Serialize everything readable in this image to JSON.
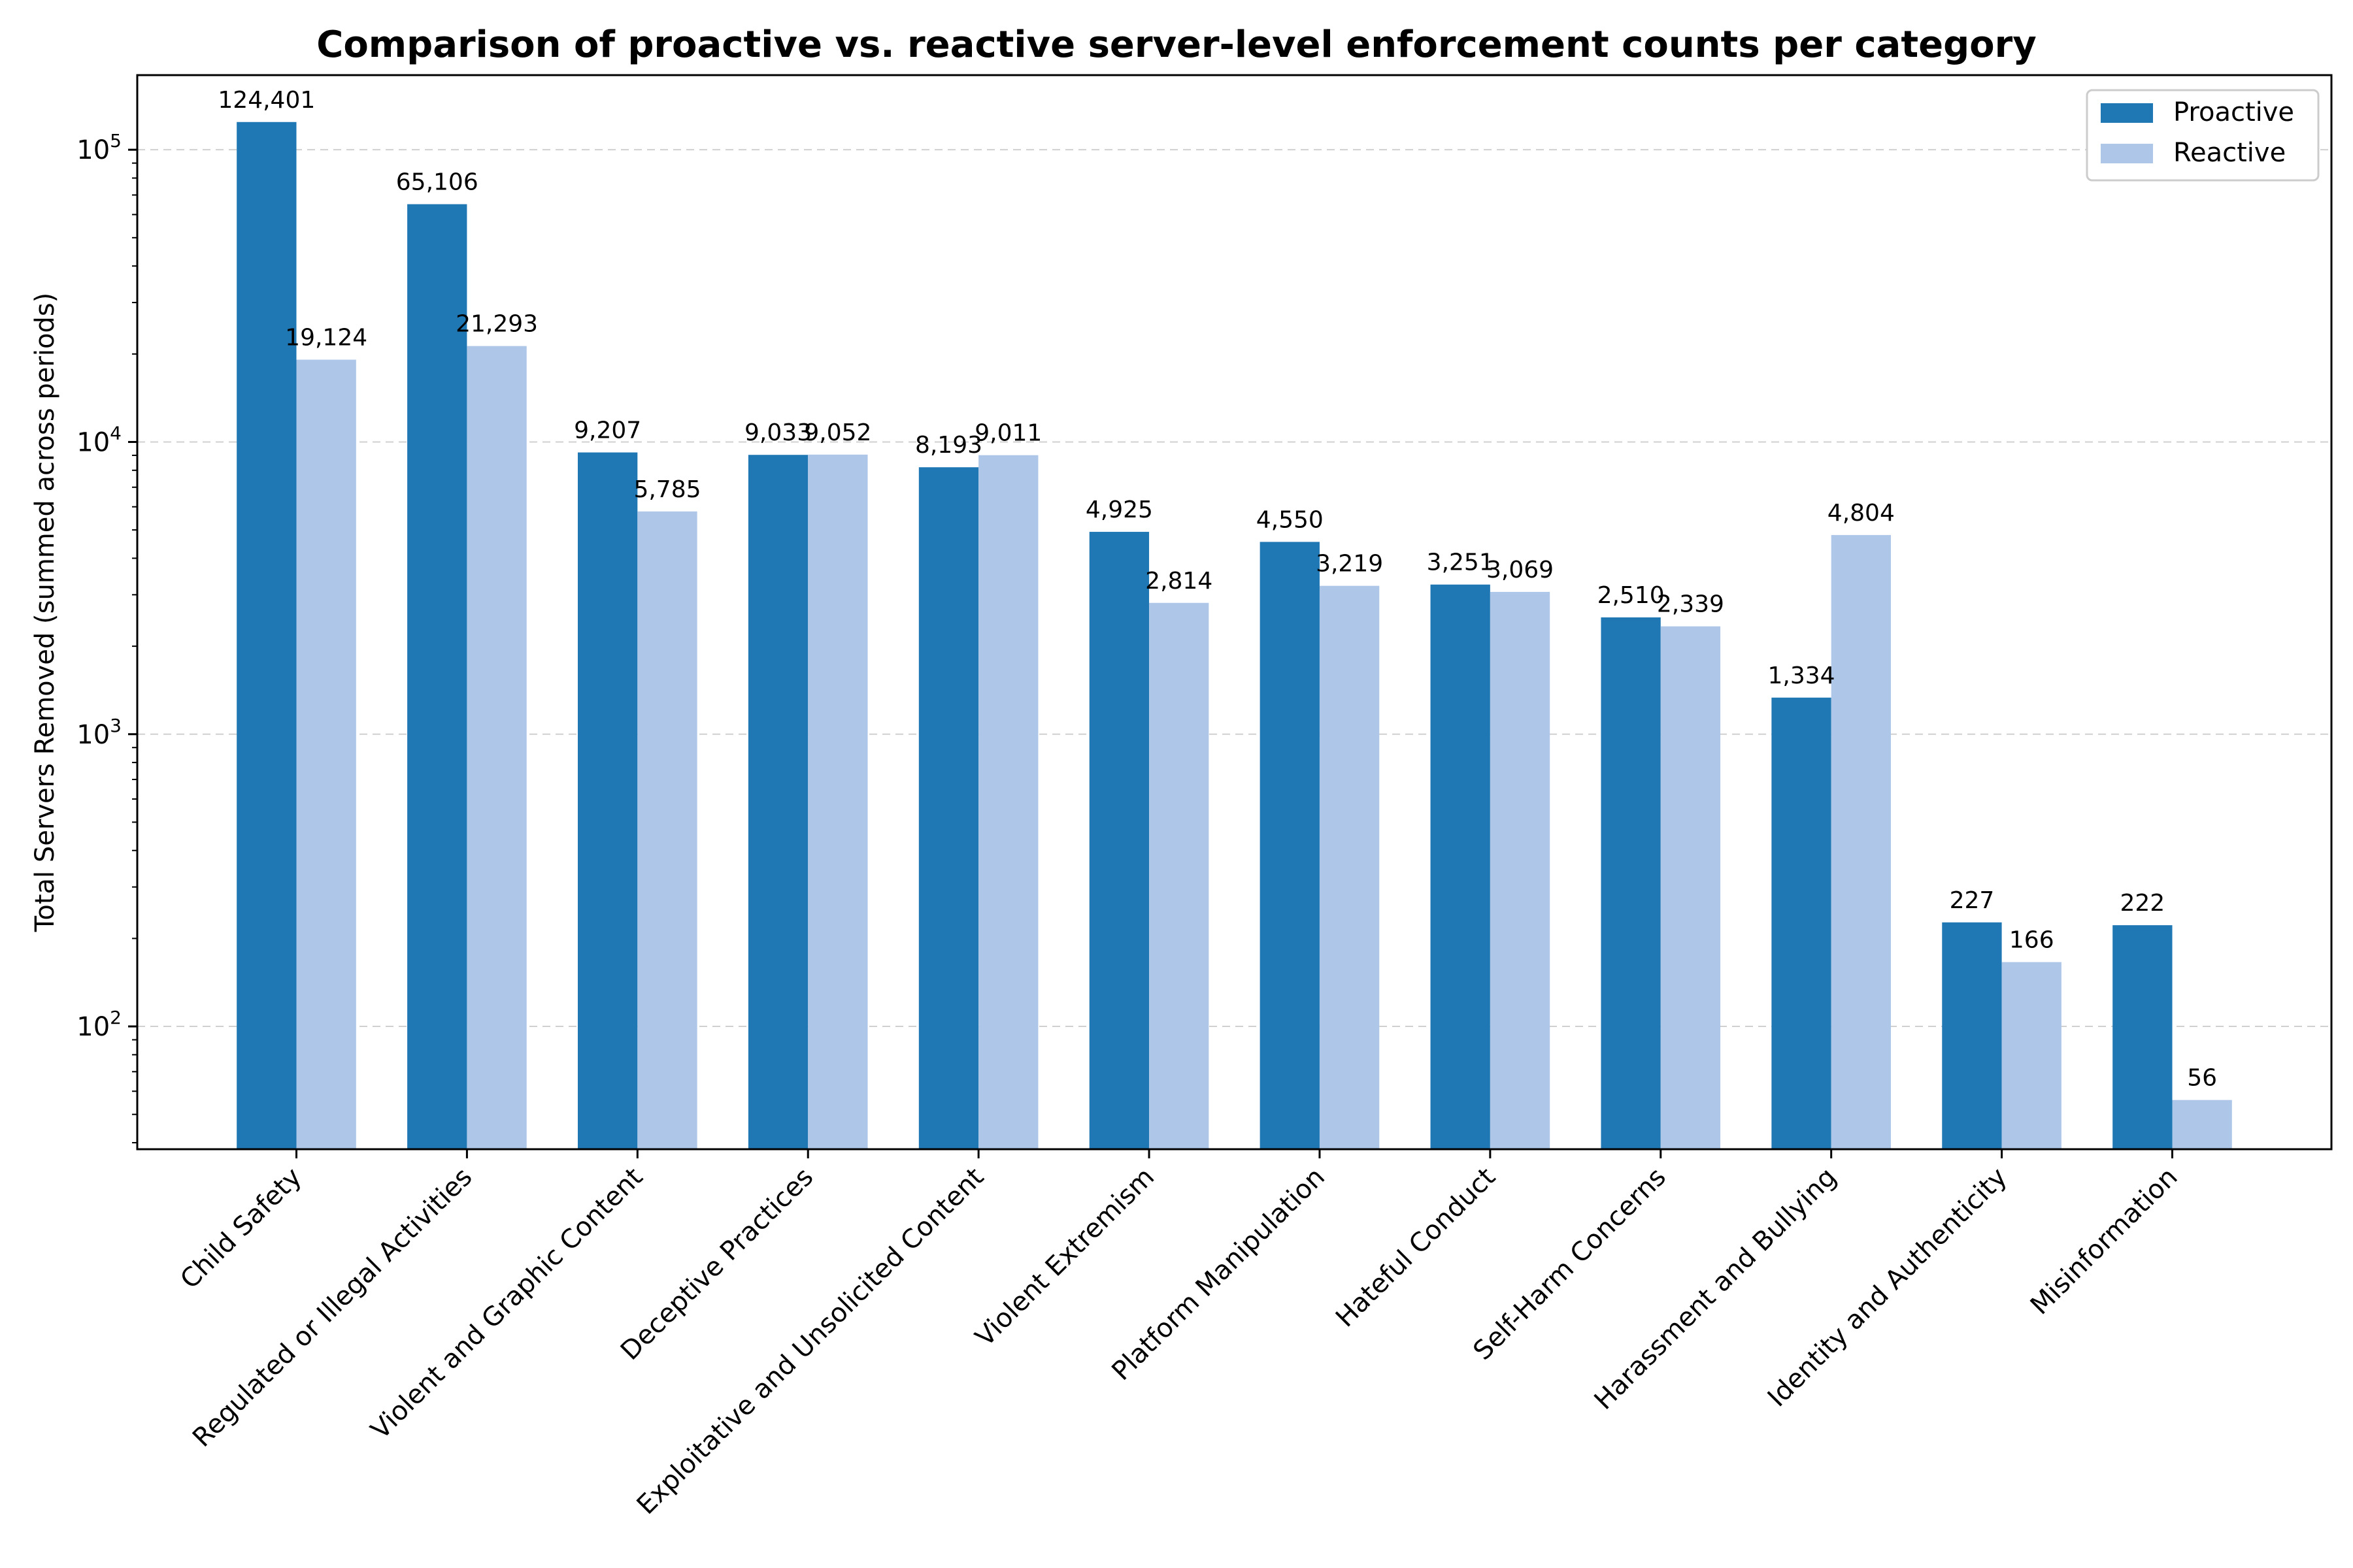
{
  "chart_data": {
    "type": "bar",
    "title": "Comparison of proactive vs. reactive server-level enforcement counts per category",
    "xlabel": "",
    "ylabel": "Total Servers Removed (summed across periods)",
    "yscale": "log",
    "ylim": [
      38,
      180000
    ],
    "yticks": [
      {
        "value": 100,
        "base": "10",
        "exp": "2"
      },
      {
        "value": 1000,
        "base": "10",
        "exp": "3"
      },
      {
        "value": 10000,
        "base": "10",
        "exp": "4"
      },
      {
        "value": 100000,
        "base": "10",
        "exp": "5"
      }
    ],
    "grid": "horizontal dashed",
    "legend_position": "top-right",
    "categories": [
      "Child Safety",
      "Regulated or Illegal Activities",
      "Violent and Graphic Content",
      "Deceptive Practices",
      "Exploitative and Unsolicited Content",
      "Violent Extremism",
      "Platform Manipulation",
      "Hateful Conduct",
      "Self-Harm Concerns",
      "Harassment and Bullying",
      "Identity and Authenticity",
      "Misinformation"
    ],
    "series": [
      {
        "name": "Proactive",
        "color": "#1f77b4",
        "values": [
          124401,
          65106,
          9207,
          9033,
          8193,
          4925,
          4550,
          3251,
          2510,
          1334,
          227,
          222
        ],
        "labels": [
          "124,401",
          "65,106",
          "9,207",
          "9,033",
          "8,193",
          "4,925",
          "4,550",
          "3,251",
          "2,510",
          "1,334",
          "227",
          "222"
        ]
      },
      {
        "name": "Reactive",
        "color": "#aec7e8",
        "values": [
          19124,
          21293,
          5785,
          9052,
          9011,
          2814,
          3219,
          3069,
          2339,
          4804,
          166,
          56
        ],
        "labels": [
          "19,124",
          "21,293",
          "5,785",
          "9,052",
          "9,011",
          "2,814",
          "3,219",
          "3,069",
          "2,339",
          "4,804",
          "166",
          "56"
        ]
      }
    ]
  }
}
